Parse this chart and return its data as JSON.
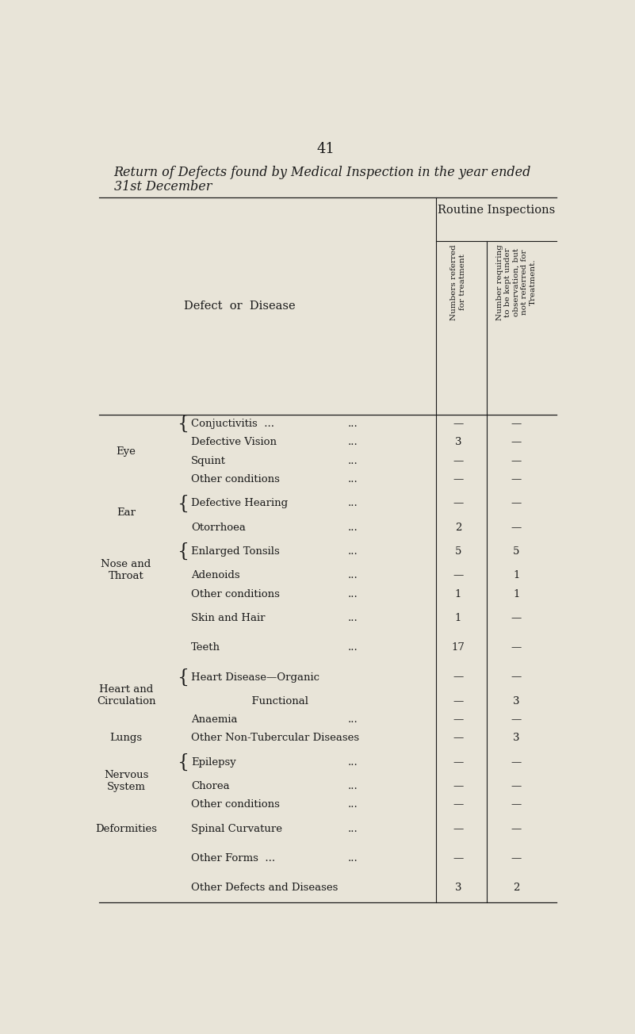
{
  "bg_color": "#e8e4d8",
  "page_number": "41",
  "title_line1": "Return of Defects found by Medical Inspection in the year ended",
  "title_line2": "31st December",
  "col_header_main": "Routine Inspections",
  "col_header1": "Numbers referred\nfor treatment",
  "col_header2": "Number requiring\nto be kept under\nobservation, but\nnot referred for\nTreatment.",
  "defect_header": "Defect  or  Disease",
  "rows": [
    {
      "bracket": true,
      "subcategory": "Conjuctivitis  ...",
      "dots": "...",
      "col1": "—",
      "col2": "—"
    },
    {
      "bracket": false,
      "subcategory": "Defective Vision",
      "dots": "...",
      "col1": "3",
      "col2": "—"
    },
    {
      "bracket": false,
      "subcategory": "Squint",
      "dots": "...",
      "col1": "—",
      "col2": "—"
    },
    {
      "bracket": false,
      "subcategory": "Other conditions",
      "dots": "...",
      "col1": "—",
      "col2": "—"
    },
    {
      "bracket": true,
      "subcategory": "Defective Hearing",
      "dots": "...",
      "col1": "—",
      "col2": "—"
    },
    {
      "bracket": false,
      "subcategory": "Otorrhoea",
      "dots": "...",
      "col1": "2",
      "col2": "—"
    },
    {
      "bracket": true,
      "subcategory": "Enlarged Tonsils",
      "dots": "...",
      "col1": "5",
      "col2": "5"
    },
    {
      "bracket": false,
      "subcategory": "Adenoids",
      "dots": "...",
      "col1": "—",
      "col2": "1"
    },
    {
      "bracket": false,
      "subcategory": "Other conditions",
      "dots": "...",
      "col1": "1",
      "col2": "1"
    },
    {
      "bracket": false,
      "subcategory": "Skin and Hair",
      "dots": "...",
      "col1": "1",
      "col2": "—"
    },
    {
      "bracket": false,
      "subcategory": "Teeth",
      "dots": "...",
      "col1": "17",
      "col2": "—"
    },
    {
      "bracket": true,
      "subcategory": "Heart Disease—Organic",
      "dots": "",
      "col1": "—",
      "col2": "—"
    },
    {
      "bracket": false,
      "subcategory": "                  Functional",
      "dots": "",
      "col1": "—",
      "col2": "3"
    },
    {
      "bracket": false,
      "subcategory": "Anaemia",
      "dots": "...",
      "col1": "—",
      "col2": "—"
    },
    {
      "bracket": false,
      "subcategory": "Other Non-Tubercular Diseases",
      "dots": "",
      "col1": "—",
      "col2": "3"
    },
    {
      "bracket": true,
      "subcategory": "Epilepsy",
      "dots": "...",
      "col1": "—",
      "col2": "—"
    },
    {
      "bracket": false,
      "subcategory": "Chorea",
      "dots": "...",
      "col1": "—",
      "col2": "—"
    },
    {
      "bracket": false,
      "subcategory": "Other conditions",
      "dots": "...",
      "col1": "—",
      "col2": "—"
    },
    {
      "bracket": false,
      "subcategory": "Spinal Curvature",
      "dots": "...",
      "col1": "—",
      "col2": "—"
    },
    {
      "bracket": false,
      "subcategory": "Other Forms  ...",
      "dots": "...",
      "col1": "—",
      "col2": "—"
    },
    {
      "bracket": false,
      "subcategory": "Other Defects and Diseases",
      "dots": "",
      "col1": "3",
      "col2": "2"
    }
  ],
  "bracket_groups": [
    {
      "label": "Eye",
      "rows": [
        0,
        3
      ]
    },
    {
      "label": "Ear",
      "rows": [
        4,
        5
      ]
    },
    {
      "label": "Nose and\nThroat",
      "rows": [
        6,
        8
      ]
    },
    {
      "label": "Heart and\nCirculation",
      "rows": [
        11,
        13
      ]
    },
    {
      "label": "Nervous\nSystem",
      "rows": [
        15,
        17
      ]
    }
  ],
  "standalone_labels": [
    {
      "label": "Lungs",
      "row": 14
    },
    {
      "label": "Deformities",
      "row": 18
    }
  ],
  "row_spacing": [
    1,
    1,
    1,
    1,
    1.6,
    1,
    1.6,
    1,
    1,
    1.6,
    1.6,
    1.6,
    1,
    1,
    1.0,
    1.6,
    1,
    1,
    1.6,
    1.6,
    1.6
  ]
}
